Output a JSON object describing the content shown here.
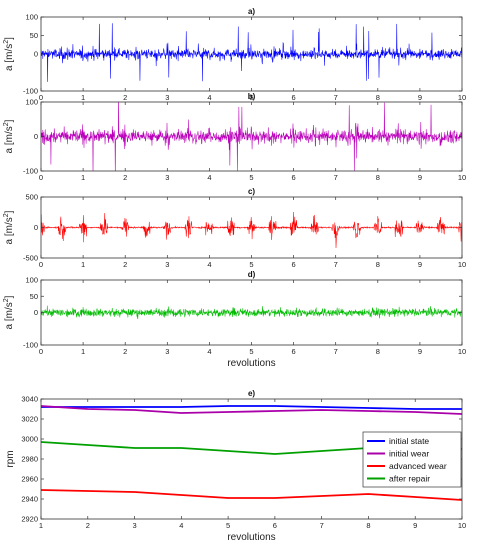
{
  "chart_data": [
    {
      "type": "line",
      "title": "a)",
      "ylabel": "a [m/s",
      "ylabel_exp": "2",
      "ylabel_close": "]",
      "xlabel": "",
      "xlim": [
        0,
        10
      ],
      "ylim": [
        -100,
        100
      ],
      "xticks": [
        "0",
        "1",
        "2",
        "3",
        "4",
        "5",
        "6",
        "7",
        "8",
        "9",
        "10"
      ],
      "yticks": [
        "-100",
        "0",
        "50",
        "100"
      ],
      "ytick_values": [
        -100,
        0,
        50,
        100
      ],
      "color": "#0000ff",
      "signal": {
        "amplitude": 60,
        "impulse_period": 0.25,
        "style": "random"
      }
    },
    {
      "type": "line",
      "title": "b)",
      "ylabel": "a [m/s",
      "ylabel_exp": "2",
      "ylabel_close": "]",
      "xlabel": "",
      "xlim": [
        0,
        10
      ],
      "ylim": [
        -100,
        100
      ],
      "xticks": [
        "0",
        "1",
        "2",
        "3",
        "4",
        "5",
        "6",
        "7",
        "8",
        "9",
        "10"
      ],
      "yticks": [
        "-100",
        "0",
        "100"
      ],
      "ytick_values": [
        -100,
        0,
        100
      ],
      "color": "#bb00bb",
      "signal": {
        "amplitude": 90,
        "impulse_period": 0.5,
        "style": "random"
      }
    },
    {
      "type": "line",
      "title": "c)",
      "ylabel": "a [m/s",
      "ylabel_exp": "2",
      "ylabel_close": "]",
      "xlabel": "",
      "xlim": [
        0,
        10
      ],
      "ylim": [
        -500,
        500
      ],
      "xticks": [
        "0",
        "1",
        "2",
        "3",
        "4",
        "5",
        "6",
        "7",
        "8",
        "9",
        "10"
      ],
      "yticks": [
        "-500",
        "0",
        "500"
      ],
      "ytick_values": [
        -500,
        0,
        500
      ],
      "color": "#ff0000",
      "signal": {
        "amplitude": 450,
        "impulse_period": 0.5,
        "style": "bursts"
      }
    },
    {
      "type": "line",
      "title": "d)",
      "ylabel": "a [m/s",
      "ylabel_exp": "2",
      "ylabel_close": "]",
      "xlabel": "revolutions",
      "xlim": [
        0,
        10
      ],
      "ylim": [
        -100,
        100
      ],
      "xticks": [
        "0",
        "1",
        "2",
        "3",
        "4",
        "5",
        "6",
        "7",
        "8",
        "9",
        "10"
      ],
      "yticks": [
        "-100",
        "0",
        "50",
        "100"
      ],
      "ytick_values": [
        -100,
        0,
        50,
        100
      ],
      "color": "#00bb00",
      "signal": {
        "amplitude": 25,
        "impulse_period": 0.25,
        "style": "noise"
      }
    },
    {
      "type": "line",
      "title": "e)",
      "ylabel": "rpm",
      "xlabel": "revolutions",
      "xlim": [
        1,
        10
      ],
      "ylim": [
        2920,
        3040
      ],
      "xticks": [
        "1",
        "2",
        "3",
        "4",
        "5",
        "6",
        "7",
        "8",
        "9",
        "10"
      ],
      "yticks": [
        "2920",
        "2940",
        "2960",
        "2980",
        "3000",
        "3020",
        "3040"
      ],
      "ytick_values": [
        2920,
        2940,
        2960,
        2980,
        3000,
        3020,
        3040
      ],
      "legend_position": "right",
      "x": [
        1,
        2,
        3,
        4,
        5,
        6,
        7,
        8,
        9,
        10
      ],
      "series": [
        {
          "name": "initial state",
          "color": "#0000ff",
          "values": [
            3032,
            3032,
            3032,
            3032,
            3033,
            3033,
            3032,
            3031,
            3030,
            3030
          ]
        },
        {
          "name": "initial wear",
          "color": "#aa00aa",
          "values": [
            3033,
            3030,
            3029,
            3026,
            3027,
            3028,
            3029,
            3028,
            3027,
            3025
          ]
        },
        {
          "name": "advanced wear",
          "color": "#ff0000",
          "values": [
            2949,
            2948,
            2947,
            2944,
            2941,
            2941,
            2943,
            2945,
            2942,
            2939
          ]
        },
        {
          "name": "after repair",
          "color": "#00a000",
          "values": [
            2997,
            2994,
            2991,
            2991,
            2988,
            2985,
            2988,
            2991,
            2991,
            2990
          ]
        }
      ]
    }
  ]
}
